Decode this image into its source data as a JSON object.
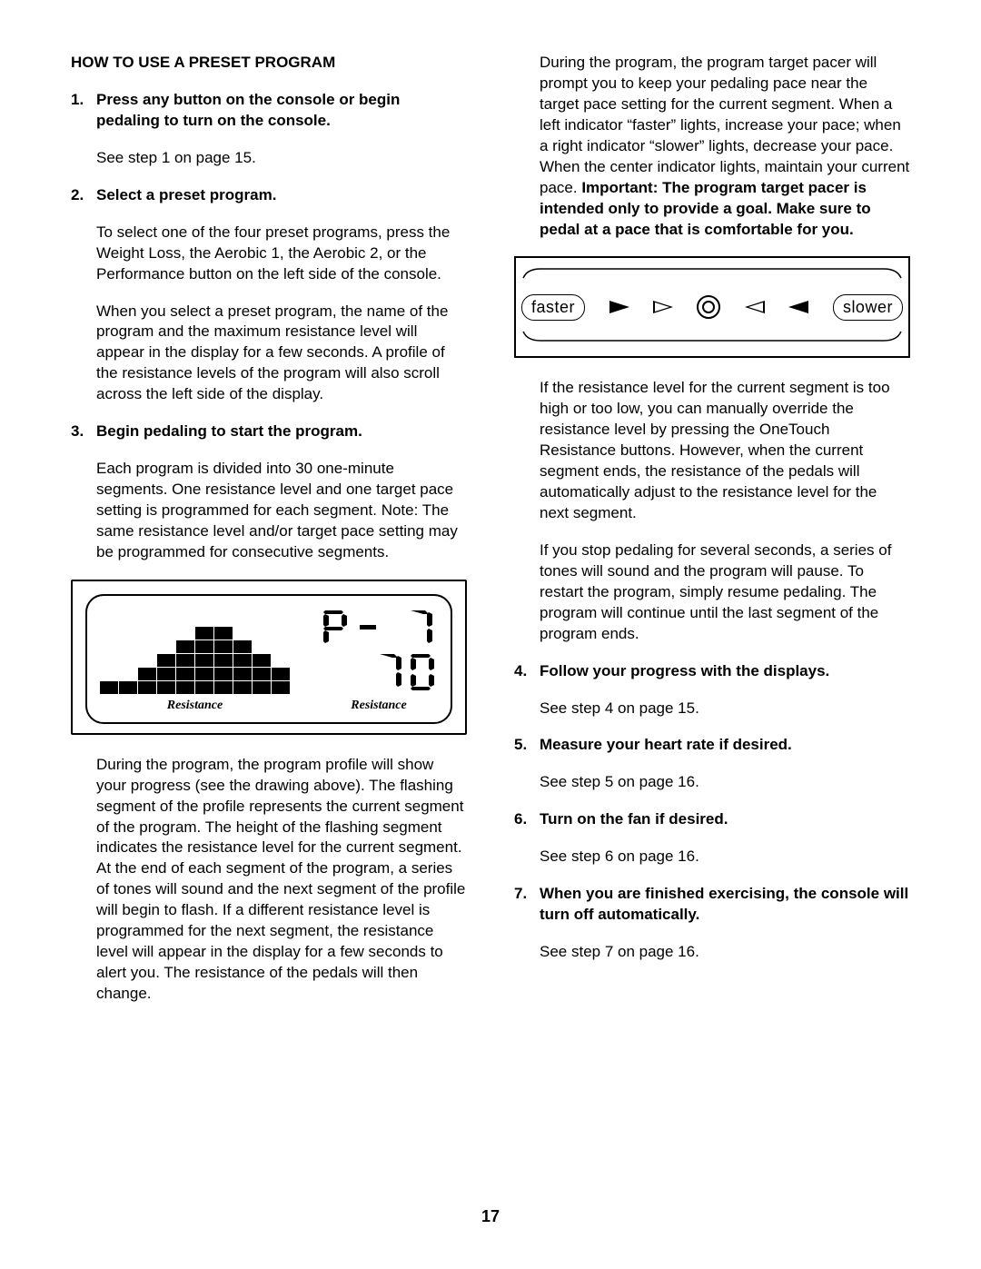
{
  "page_number": "17",
  "left": {
    "title": "HOW TO USE A PRESET PROGRAM",
    "steps": {
      "1": {
        "num": "1.",
        "head": "Press any button on the console or begin pedaling to turn on the console.",
        "p1": "See step 1 on page 15."
      },
      "2": {
        "num": "2.",
        "head": "Select a preset program.",
        "p1": "To select one of the four preset programs, press the Weight Loss, the Aerobic 1, the Aerobic 2, or the Performance button on the left side of the console.",
        "p2": "When you select a preset program, the name of the program and the maximum resistance level will appear in the display for a few seconds. A profile of the resistance levels of the program will also scroll across the left side of the display."
      },
      "3": {
        "num": "3.",
        "head": "Begin pedaling to start the program.",
        "p1": "Each program is divided into 30 one-minute segments. One resistance level and one target pace setting is programmed for each segment. Note: The same resistance level and/or target pace setting may be programmed for consecutive segments.",
        "p2": "During the program, the program profile will show your progress (see the drawing above). The flashing segment of the profile represents the current segment of the program. The height of the flashing segment indicates the resistance level for the current segment. At the end of each segment of the program, a series of tones will sound and the next segment of the profile will begin to flash. If a different resistance level is programmed for the next segment, the resistance level will appear in the display for a few seconds to alert you. The resistance of the pedals will then change."
      }
    },
    "lcd": {
      "profile_heights": [
        1,
        1,
        2,
        3,
        4,
        5,
        5,
        4,
        3,
        2
      ],
      "label": "Resistance",
      "digit_top": "P- 1",
      "digit_bottom": "10"
    }
  },
  "right": {
    "cont": {
      "p1a": "During the program, the program target pacer will prompt you to keep your pedaling pace near the target pace setting for the current segment. When a left indicator “faster” lights, increase your pace; when a right indicator “slower” lights, decrease your pace. When the center indicator lights, maintain your current pace. ",
      "p1b": "Important: The program target pacer is intended only to provide a goal. Make sure to pedal at a pace that is comfortable for you.",
      "p2": "If the resistance level for the current segment is too high or too low, you can manually override the resistance level by pressing the OneTouch Resistance buttons. However, when the current segment ends, the resistance of the pedals will automatically adjust to the resistance level for the next segment.",
      "p3": "If you stop pedaling for several seconds, a series of tones will sound and the program will pause. To restart the program, simply resume pedaling. The program will continue until the last segment of the program ends."
    },
    "pacer": {
      "faster": "faster",
      "slower": "slower"
    },
    "steps": {
      "4": {
        "num": "4.",
        "head": "Follow your progress with the displays.",
        "p1": "See step 4 on page 15."
      },
      "5": {
        "num": "5.",
        "head": "Measure your heart rate if desired.",
        "p1": "See step 5 on page 16."
      },
      "6": {
        "num": "6.",
        "head": "Turn on the fan if desired.",
        "p1": "See step 6 on page 16."
      },
      "7": {
        "num": "7.",
        "head": "When you are finished exercising, the console will turn off automatically.",
        "p1": "See step 7 on page 16."
      }
    }
  }
}
